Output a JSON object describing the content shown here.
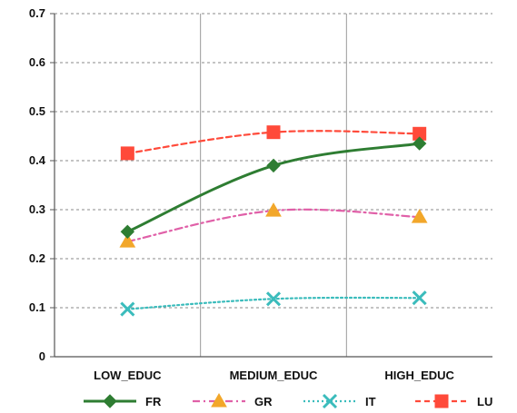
{
  "chart_data": {
    "type": "line",
    "title": "",
    "xlabel": "",
    "ylabel": "",
    "categories": [
      "LOW_EDUC",
      "MEDIUM_EDUC",
      "HIGH_EDUC"
    ],
    "ylim": [
      0,
      0.7
    ],
    "yticks": [
      "0",
      "0.1",
      "0.2",
      "0.3",
      "0.4",
      "0.5",
      "0.6",
      "0.7"
    ],
    "grid": "dashed horizontal gridlines; solid vertical category separators",
    "legend_position": "bottom",
    "series": [
      {
        "name": "FR",
        "values": [
          0.255,
          0.39,
          0.435
        ],
        "color": "#2e7d32",
        "line": "solid",
        "marker": "diamond"
      },
      {
        "name": "GR",
        "values": [
          0.235,
          0.298,
          0.285
        ],
        "color": "#e060a8",
        "line": "dash-dot",
        "marker": "triangle"
      },
      {
        "name": "IT",
        "values": [
          0.097,
          0.118,
          0.12
        ],
        "color": "#3bbcbc",
        "line": "dotted",
        "marker": "cross"
      },
      {
        "name": "LU",
        "values": [
          0.415,
          0.458,
          0.455
        ],
        "color": "#ff4a3a",
        "line": "dashed",
        "marker": "square"
      }
    ]
  }
}
